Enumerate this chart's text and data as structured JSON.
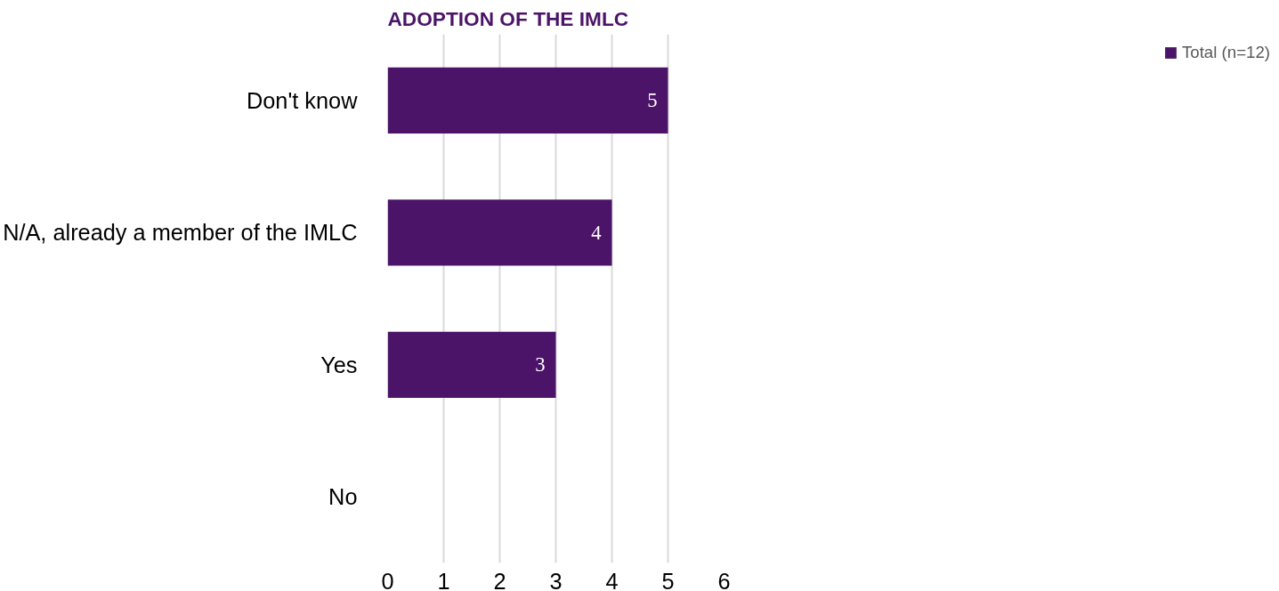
{
  "chart_data": {
    "type": "bar",
    "orientation": "horizontal",
    "title": "ADOPTION OF THE IMLC",
    "categories": [
      "Don't know",
      "N/A, already a member of the IMLC",
      "Yes",
      "No"
    ],
    "series": [
      {
        "name": "Total (n=12)",
        "color": "#4b1468",
        "values": [
          5,
          4,
          3,
          0
        ],
        "value_labels": [
          "5",
          "4",
          "3",
          null
        ]
      }
    ],
    "xlim": [
      0,
      6
    ],
    "xticks": [
      0,
      1,
      2,
      3,
      4,
      5,
      6
    ],
    "grid": "x",
    "legend": "right"
  }
}
